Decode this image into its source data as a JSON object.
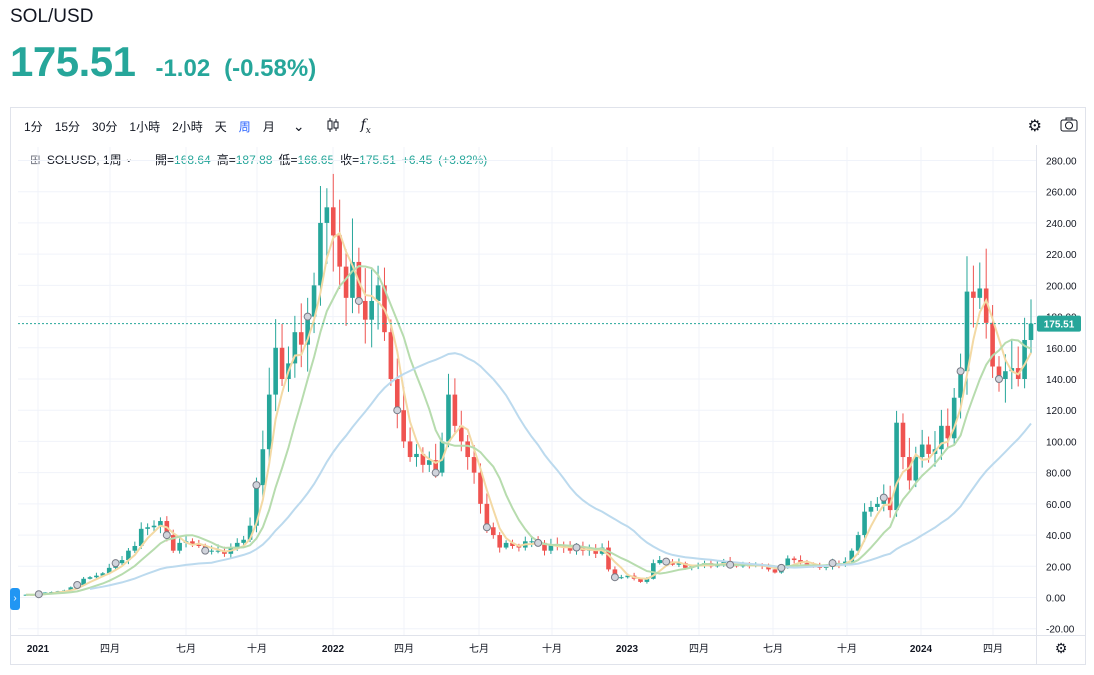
{
  "header": {
    "symbol": "SOL/USD",
    "price": "175.51",
    "change": "-1.02",
    "change_pct": "(-0.58%)"
  },
  "toolbar": {
    "intervals": [
      "1分",
      "15分",
      "30分",
      "1小時",
      "2小時",
      "天",
      "周",
      "月"
    ],
    "active_interval": "周",
    "icons": [
      "chevron-down-icon",
      "candlestick-icon",
      "fx-icon",
      "gear-icon",
      "camera-icon"
    ]
  },
  "legend": {
    "symbol": "SOLUSD, 1周",
    "open_label": "開=",
    "open": "168.64",
    "high_label": "高=",
    "high": "187.88",
    "low_label": "低=",
    "low": "166.65",
    "close_label": "收=",
    "close": "175.51",
    "change": "+6.45",
    "change_pct": "(+3.82%)"
  },
  "colors": {
    "up": "#26a69a",
    "down": "#ef5350",
    "ma_short": "#f3d9a4",
    "ma_mid": "#b7dcae",
    "ma_long": "#bcdaee",
    "grid": "#f0f3fa",
    "price_line": "#26a69a"
  },
  "chart_data": {
    "type": "candlestick",
    "interval": "1周",
    "last_price_label": "175.51",
    "y_ticks": [
      "280.00",
      "260.00",
      "240.00",
      "220.00",
      "200.00",
      "180.00",
      "160.00",
      "140.00",
      "120.00",
      "100.00",
      "80.00",
      "60.00",
      "40.00",
      "20.00",
      "0.00",
      "-20.00"
    ],
    "ylim": [
      -20,
      280
    ],
    "x_ticks": [
      "2021",
      "四月",
      "七月",
      "十月",
      "2022",
      "四月",
      "七月",
      "十月",
      "2023",
      "四月",
      "七月",
      "十月",
      "2024",
      "四月"
    ],
    "closes": [
      1.8,
      1.6,
      2.1,
      3.2,
      3.5,
      4.0,
      4.5,
      6.5,
      8.0,
      12.0,
      13.0,
      14.0,
      15.5,
      19.0,
      22.0,
      24.0,
      30.0,
      33.0,
      44.0,
      45.0,
      46.0,
      49.0,
      40.0,
      30.0,
      35.0,
      36.0,
      34.0,
      33.0,
      30.0,
      30.0,
      30.0,
      28.0,
      32.0,
      35.0,
      37.0,
      46.0,
      72.0,
      95.0,
      130.0,
      160.0,
      140.0,
      150.0,
      170.0,
      162.0,
      180.0,
      200.0,
      240.0,
      250.0,
      232.0,
      212.0,
      192.0,
      215.0,
      190.0,
      178.0,
      190.0,
      200.0,
      170.0,
      140.0,
      120.0,
      100.0,
      90.0,
      92.0,
      85.0,
      88.0,
      80.0,
      100.0,
      130.0,
      110.0,
      100.0,
      90.0,
      80.0,
      60.0,
      45.0,
      40.0,
      32.0,
      35.0,
      33.0,
      32.0,
      36.0,
      36.0,
      35.0,
      30.0,
      34.0,
      33.0,
      32.0,
      30.0,
      32.0,
      30.0,
      31.0,
      28.0,
      32.0,
      18.0,
      13.0,
      13.0,
      14.0,
      12.0,
      10.0,
      12.0,
      22.0,
      24.0,
      23.0,
      21.0,
      22.0,
      19.0,
      20.0,
      21.0,
      22.0,
      20.0,
      21.0,
      23.0,
      21.0,
      20.0,
      21.0,
      20.0,
      21.0,
      20.0,
      18.0,
      16.0,
      19.0,
      25.0,
      24.0,
      22.0,
      21.0,
      20.0,
      19.0,
      20.0,
      22.0,
      21.0,
      23.0,
      30.0,
      40.0,
      55.0,
      58.0,
      60.0,
      64.0,
      56.0,
      112.0,
      90.0,
      75.0,
      90.0,
      98.0,
      92.0,
      95.0,
      110.0,
      102.0,
      128.0,
      145.0,
      196.0,
      192.0,
      198.0,
      176.0,
      148.0,
      140.0,
      145.0,
      147.0,
      140.0,
      165.0,
      175.51
    ]
  }
}
